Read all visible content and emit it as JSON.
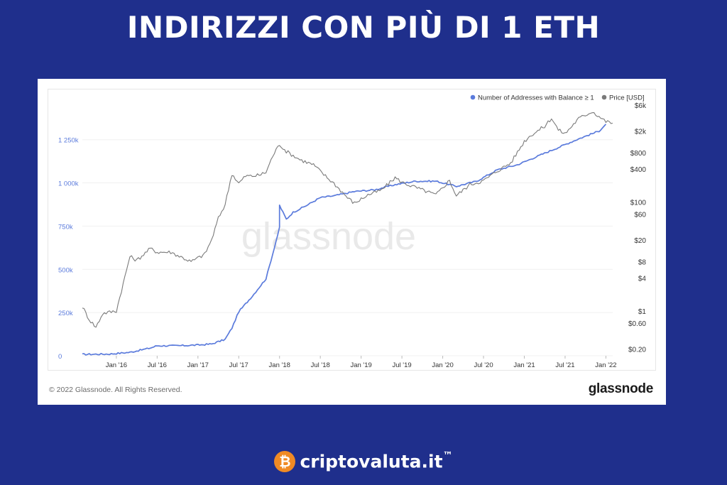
{
  "page": {
    "title": "INDIRIZZI CON PIÙ DI 1 ETH",
    "copyright": "© 2022 Glassnode. All Rights Reserved.",
    "glassnode_logo": "glassnode",
    "watermark": "glassnode",
    "brand_name": "criptovaluta.it",
    "brand_tm": "™",
    "brand_icon": "bitcoin-coin-icon"
  },
  "colors": {
    "background": "#1f2f8c",
    "addresses": "#5b7bdc",
    "price": "#7a7a7a",
    "left_axis_text": "#5b7bdc"
  },
  "chart_data": {
    "type": "line",
    "legend_position": "top-right",
    "grid": true,
    "x_tick_labels": [
      "Jan '16",
      "Jul '16",
      "Jan '17",
      "Jul '17",
      "Jan '18",
      "Jul '18",
      "Jan '19",
      "Jul '19",
      "Jan '20",
      "Jul '20",
      "Jan '21",
      "Jul '21",
      "Jan '22"
    ],
    "x_range": [
      "2015-08",
      "2022-02"
    ],
    "left_axis": {
      "ticks": [
        0,
        250000,
        500000,
        750000,
        1000000,
        1250000
      ],
      "tick_labels": [
        "0",
        "250k",
        "500k",
        "750k",
        "1 000k",
        "1 250k"
      ],
      "range": [
        0,
        1450000
      ]
    },
    "right_axis": {
      "scale": "log",
      "ticks": [
        0.2,
        0.6,
        1,
        4,
        8,
        20,
        60,
        100,
        400,
        800,
        2000,
        6000
      ],
      "tick_labels": [
        "$0.20",
        "$0.60",
        "$1",
        "$4",
        "$8",
        "$20",
        "$60",
        "$100",
        "$400",
        "$800",
        "$2k",
        "$6k"
      ],
      "range": [
        0.15,
        6000
      ]
    },
    "series": [
      {
        "name": "Number of Addresses with Balance ≥ 1",
        "axis": "left",
        "x": [
          "2015-08",
          "2015-12",
          "2016-03",
          "2016-06",
          "2016-07",
          "2016-10",
          "2017-01",
          "2017-03",
          "2017-05",
          "2017-06",
          "2017-07",
          "2017-09",
          "2017-11",
          "2017-12",
          "2018-01",
          "2018-01",
          "2018-02",
          "2018-03",
          "2018-05",
          "2018-07",
          "2018-09",
          "2018-12",
          "2019-03",
          "2019-06",
          "2019-09",
          "2019-12",
          "2020-03",
          "2020-06",
          "2020-09",
          "2020-12",
          "2021-03",
          "2021-06",
          "2021-09",
          "2021-12",
          "2022-01"
        ],
        "values": [
          8000,
          10000,
          20000,
          45000,
          58000,
          58000,
          62000,
          68000,
          95000,
          160000,
          255000,
          345000,
          445000,
          590000,
          740000,
          870000,
          790000,
          830000,
          870000,
          915000,
          925000,
          950000,
          960000,
          990000,
          1010000,
          1010000,
          980000,
          1010000,
          1075000,
          1105000,
          1155000,
          1205000,
          1255000,
          1300000,
          1340000
        ]
      },
      {
        "name": "Price [USD]",
        "axis": "right",
        "x": [
          "2015-08",
          "2015-09",
          "2015-10",
          "2015-11",
          "2016-01",
          "2016-03",
          "2016-04",
          "2016-06",
          "2016-07",
          "2016-09",
          "2016-12",
          "2017-02",
          "2017-03",
          "2017-04",
          "2017-05",
          "2017-06",
          "2017-07",
          "2017-08",
          "2017-09",
          "2017-10",
          "2017-11",
          "2017-12",
          "2018-01",
          "2018-02",
          "2018-04",
          "2018-06",
          "2018-08",
          "2018-09",
          "2018-11",
          "2018-12",
          "2019-02",
          "2019-04",
          "2019-06",
          "2019-07",
          "2019-09",
          "2019-12",
          "2020-02",
          "2020-03",
          "2020-05",
          "2020-07",
          "2020-09",
          "2020-11",
          "2021-01",
          "2021-02",
          "2021-04",
          "2021-05",
          "2021-06",
          "2021-07",
          "2021-09",
          "2021-11",
          "2022-01",
          "2022-02"
        ],
        "values": [
          1.2,
          0.7,
          0.5,
          0.9,
          1.0,
          10,
          8.5,
          14,
          12,
          12,
          8,
          11,
          20,
          50,
          90,
          330,
          220,
          300,
          300,
          310,
          350,
          700,
          1150,
          850,
          600,
          480,
          280,
          220,
          120,
          95,
          135,
          165,
          280,
          230,
          185,
          135,
          250,
          130,
          210,
          245,
          370,
          520,
          1300,
          1700,
          2450,
          3500,
          2100,
          1800,
          3400,
          4600,
          3000,
          2800
        ]
      }
    ]
  }
}
